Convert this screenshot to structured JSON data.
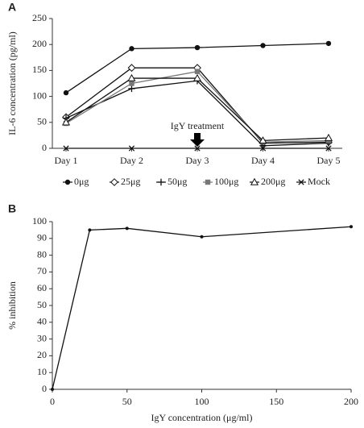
{
  "chart_data": [
    {
      "type": "line",
      "panel": "A",
      "ylabel": "IL-6 concentration (pg/ml)",
      "categories": [
        "Day 1",
        "Day 2",
        "Day 3",
        "Day 4",
        "Day 5"
      ],
      "ylim": [
        0,
        250
      ],
      "yticks": [
        0,
        50,
        100,
        150,
        200,
        250
      ],
      "annotation": "IgY treatment",
      "annotation_category": 2,
      "series": [
        {
          "name": "0μg",
          "color": "#111111",
          "marker": "circle",
          "values": [
            107,
            192,
            194,
            198,
            202
          ]
        },
        {
          "name": "25μg",
          "color": "#111111",
          "marker": "diamond",
          "values": [
            60,
            155,
            155,
            10,
            12
          ]
        },
        {
          "name": "50μg",
          "color": "#111111",
          "marker": "plus",
          "values": [
            58,
            115,
            130,
            5,
            10
          ]
        },
        {
          "name": "100μg",
          "color": "#777777",
          "marker": "square",
          "values": [
            48,
            125,
            148,
            12,
            15
          ]
        },
        {
          "name": "200μg",
          "color": "#111111",
          "marker": "triangle",
          "values": [
            50,
            135,
            135,
            15,
            20
          ]
        },
        {
          "name": "Mock",
          "color": "#111111",
          "marker": "x",
          "values": [
            0,
            0,
            0,
            0,
            0
          ]
        }
      ]
    },
    {
      "type": "line",
      "panel": "B",
      "xlabel": "IgY concentration (μg/ml)",
      "ylabel": "% inhibition",
      "x": [
        0,
        25,
        50,
        100,
        200
      ],
      "xlim": [
        0,
        200
      ],
      "xticks": [
        0,
        50,
        100,
        150,
        200
      ],
      "ylim": [
        0,
        100
      ],
      "yticks": [
        0,
        10,
        20,
        30,
        40,
        50,
        60,
        70,
        80,
        90,
        100
      ],
      "series": [
        {
          "color": "#111111",
          "marker": "dot",
          "values": [
            0,
            95,
            96,
            91,
            97
          ]
        }
      ]
    }
  ]
}
